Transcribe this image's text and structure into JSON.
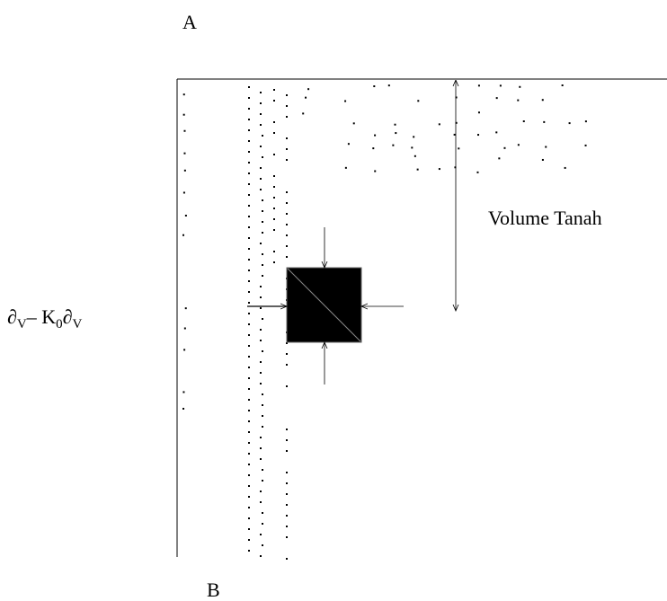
{
  "labels": {
    "top": "A",
    "bottom": "B",
    "volume": "Volume Tanah",
    "formula": [
      "∂",
      "V",
      "– K",
      "0",
      "∂",
      "V"
    ]
  }
}
